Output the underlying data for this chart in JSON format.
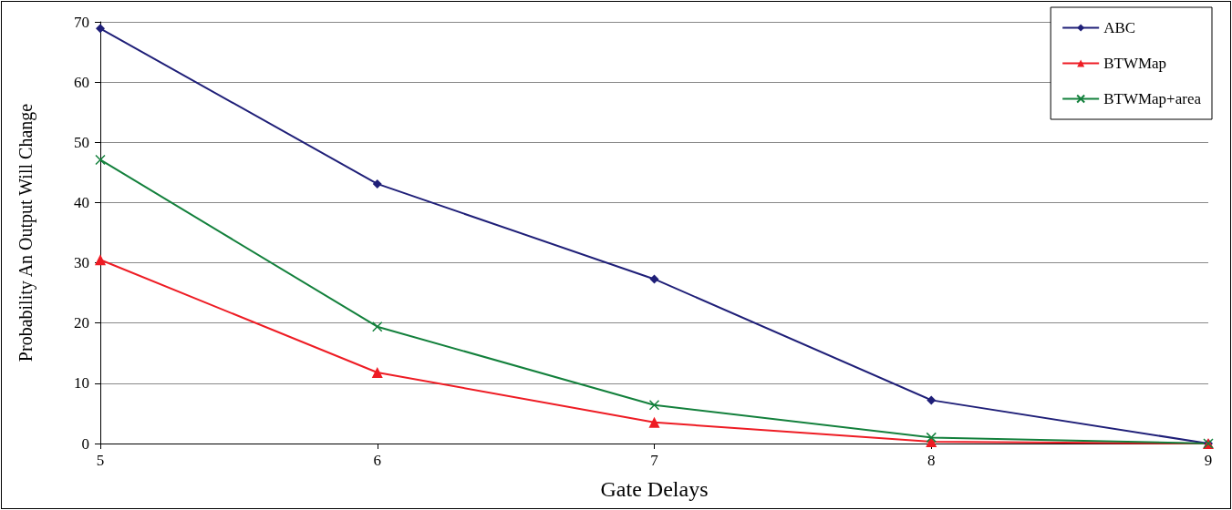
{
  "chart_data": {
    "type": "line",
    "xlabel": "Gate Delays",
    "ylabel": "Probability An Output Will Change",
    "x": [
      5,
      6,
      7,
      8,
      9
    ],
    "xlim": [
      5,
      9
    ],
    "xticks": [
      5,
      6,
      7,
      8,
      9
    ],
    "ylim": [
      0,
      70
    ],
    "yticks": [
      0,
      10,
      20,
      30,
      40,
      50,
      60,
      70
    ],
    "grid": "y",
    "legend": "top right",
    "line_style": "solid",
    "series": [
      {
        "name": "ABC",
        "color": "#1f1f78",
        "marker": "diamond",
        "values": [
          68.9,
          43.1,
          27.3,
          7.2,
          0
        ]
      },
      {
        "name": "BTWMap",
        "color": "#ee1c24",
        "marker": "triangle",
        "values": [
          30.5,
          11.8,
          3.5,
          0.3,
          0
        ]
      },
      {
        "name": "BTWMap+area",
        "color": "#13803c",
        "marker": "cross",
        "values": [
          47.1,
          19.4,
          6.4,
          1.0,
          0
        ]
      }
    ]
  }
}
